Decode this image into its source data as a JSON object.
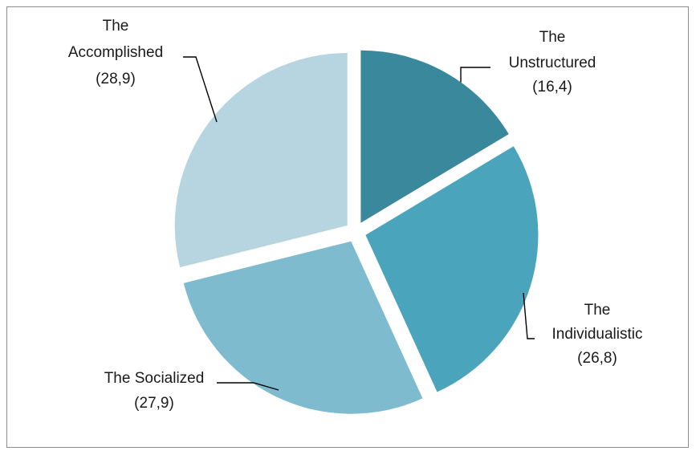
{
  "chart_data": {
    "type": "pie",
    "categories": [
      "The Unstructured",
      "The Individualistic",
      "The Socialized",
      "The Accomplished"
    ],
    "values": [
      16.4,
      26.8,
      27.9,
      28.9
    ],
    "value_labels": [
      "(16,4)",
      "(26,8)",
      "(27,9)",
      "(28,9)"
    ],
    "label_lines": [
      [
        "The",
        "Unstructured",
        "(16,4)"
      ],
      [
        "The",
        "Individualistic",
        "(26,8)"
      ],
      [
        "The Socialized",
        "(27,9)"
      ],
      [
        "The",
        "Accomplished",
        "(28,9)"
      ]
    ],
    "colors": [
      "#3a889c",
      "#4aa5bc",
      "#7fbbcf",
      "#b7d5e0"
    ],
    "exploded": true,
    "legend": "none",
    "title": ""
  }
}
